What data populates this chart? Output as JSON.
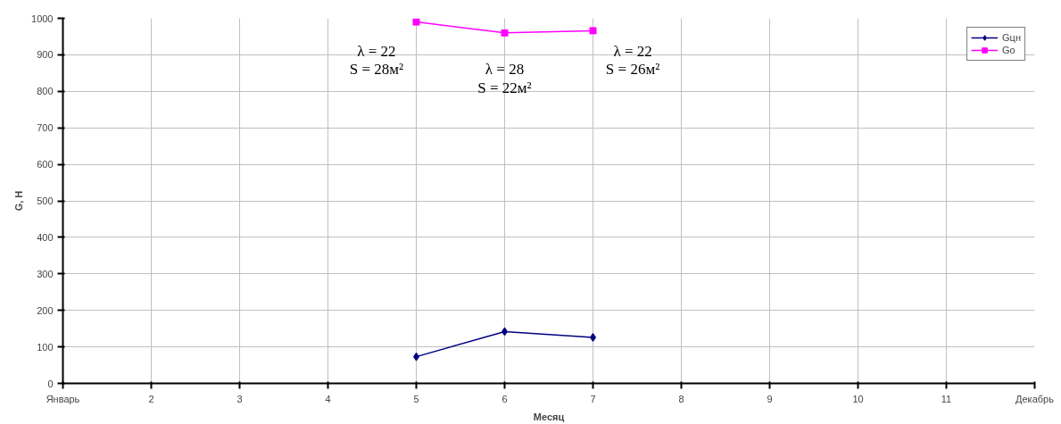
{
  "chart_data": {
    "type": "line",
    "xlabel": "Месяц",
    "ylabel": "G, H",
    "x": [
      5,
      6,
      7
    ],
    "series": [
      {
        "name": "Gцн",
        "color": "#000080",
        "marker": "diamond",
        "values": [
          73,
          142,
          126
        ]
      },
      {
        "name": "Go",
        "color": "#ff00ff",
        "marker": "square",
        "values": [
          990,
          960,
          966
        ]
      }
    ],
    "xlim": [
      1,
      12
    ],
    "xticks": [
      {
        "value": 1,
        "label": "Январь"
      },
      2,
      3,
      4,
      5,
      6,
      7,
      8,
      9,
      10,
      11,
      {
        "value": 12,
        "label": "Декабрь"
      }
    ],
    "ylim": [
      0,
      1000
    ],
    "yticks": [
      0,
      100,
      200,
      300,
      400,
      500,
      600,
      700,
      800,
      900,
      1000
    ],
    "annotations": [
      "λ = 22\nS = 28м²",
      "λ = 28\nS = 22м²",
      "λ = 22\nS = 26м²"
    ],
    "grid": true,
    "legend": "top right",
    "line_style": "solid"
  }
}
